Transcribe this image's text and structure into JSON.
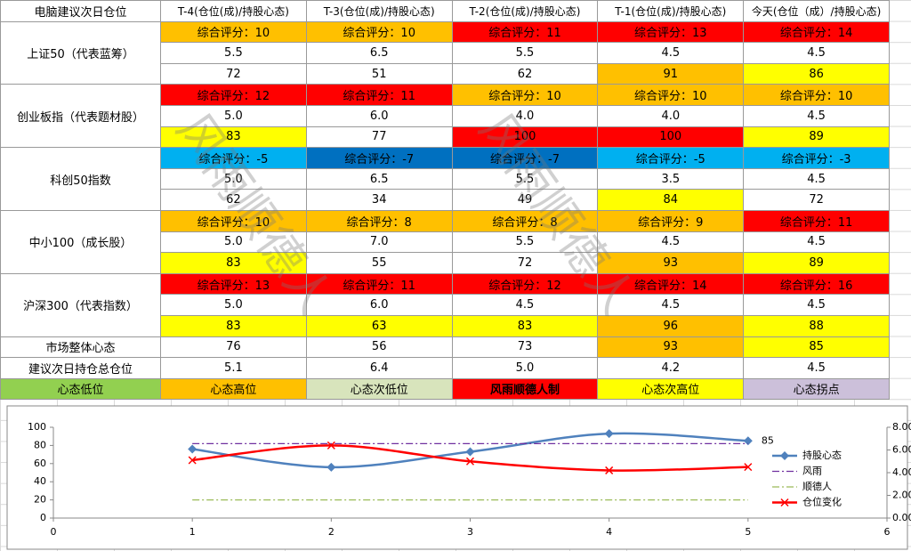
{
  "table": {
    "header": [
      "电脑建议次日仓位",
      "T-4(仓位(成)/持股心态)",
      "T-3(仓位(成)/持股心态)",
      "T-2(仓位(成)/持股心态)",
      "T-1(仓位(成)/持股心态)",
      "今天(仓位（成）/持股心态)"
    ],
    "groups": [
      {
        "name": "上证50（代表蓝筹）",
        "scores": [
          {
            "text": "综合评分：10",
            "color": "#ffc000"
          },
          {
            "text": "综合评分：10",
            "color": "#ffc000"
          },
          {
            "text": "综合评分：11",
            "color": "#ff0000"
          },
          {
            "text": "综合评分：13",
            "color": "#ff0000"
          },
          {
            "text": "综合评分：14",
            "color": "#ff0000"
          }
        ],
        "positions": [
          "5.5",
          "6.5",
          "5.5",
          "4.5",
          "4.5"
        ],
        "moods": [
          {
            "text": "72",
            "color": "#ffffff"
          },
          {
            "text": "51",
            "color": "#ffffff"
          },
          {
            "text": "62",
            "color": "#ffffff"
          },
          {
            "text": "91",
            "color": "#ffc000"
          },
          {
            "text": "86",
            "color": "#ffff00"
          }
        ]
      },
      {
        "name": "创业板指（代表题材股）",
        "scores": [
          {
            "text": "综合评分：12",
            "color": "#ff0000"
          },
          {
            "text": "综合评分：11",
            "color": "#ff0000"
          },
          {
            "text": "综合评分：10",
            "color": "#ffc000"
          },
          {
            "text": "综合评分：10",
            "color": "#ffc000"
          },
          {
            "text": "综合评分：10",
            "color": "#ffc000"
          }
        ],
        "positions": [
          "5.0",
          "6.0",
          "4.0",
          "4.0",
          "4.5"
        ],
        "moods": [
          {
            "text": "83",
            "color": "#ffff00"
          },
          {
            "text": "77",
            "color": "#ffffff"
          },
          {
            "text": "100",
            "color": "#ff0000"
          },
          {
            "text": "100",
            "color": "#ff0000"
          },
          {
            "text": "89",
            "color": "#ffff00"
          }
        ]
      },
      {
        "name": "科创50指数",
        "scores": [
          {
            "text": "综合评分：-5",
            "color": "#00b0f0"
          },
          {
            "text": "综合评分：-7",
            "color": "#0070c0"
          },
          {
            "text": "综合评分：-7",
            "color": "#0070c0"
          },
          {
            "text": "综合评分：-5",
            "color": "#00b0f0"
          },
          {
            "text": "综合评分：-3",
            "color": "#00b0f0"
          }
        ],
        "positions": [
          "5.0",
          "6.5",
          "5.5",
          "3.5",
          "4.5"
        ],
        "moods": [
          {
            "text": "62",
            "color": "#ffffff"
          },
          {
            "text": "34",
            "color": "#ffffff"
          },
          {
            "text": "49",
            "color": "#ffffff"
          },
          {
            "text": "84",
            "color": "#ffff00"
          },
          {
            "text": "72",
            "color": "#ffffff"
          }
        ]
      },
      {
        "name": "中小100（成长股）",
        "scores": [
          {
            "text": "综合评分：10",
            "color": "#ffc000"
          },
          {
            "text": "综合评分：8",
            "color": "#ffc000"
          },
          {
            "text": "综合评分：8",
            "color": "#ffc000"
          },
          {
            "text": "综合评分：9",
            "color": "#ffc000"
          },
          {
            "text": "综合评分：11",
            "color": "#ff0000"
          }
        ],
        "positions": [
          "5.0",
          "7.0",
          "5.5",
          "4.5",
          "4.5"
        ],
        "moods": [
          {
            "text": "83",
            "color": "#ffff00"
          },
          {
            "text": "55",
            "color": "#ffffff"
          },
          {
            "text": "72",
            "color": "#ffffff"
          },
          {
            "text": "93",
            "color": "#ffc000"
          },
          {
            "text": "89",
            "color": "#ffff00"
          }
        ]
      },
      {
        "name": "沪深300（代表指数）",
        "scores": [
          {
            "text": "综合评分：13",
            "color": "#ff0000"
          },
          {
            "text": "综合评分：11",
            "color": "#ff0000"
          },
          {
            "text": "综合评分：12",
            "color": "#ff0000"
          },
          {
            "text": "综合评分：14",
            "color": "#ff0000"
          },
          {
            "text": "综合评分：16",
            "color": "#ff0000"
          }
        ],
        "positions": [
          "5.0",
          "6.0",
          "4.5",
          "4.5",
          "4.5"
        ],
        "moods": [
          {
            "text": "83",
            "color": "#ffff00"
          },
          {
            "text": "63",
            "color": "#ffff00"
          },
          {
            "text": "83",
            "color": "#ffff00"
          },
          {
            "text": "96",
            "color": "#ffc000"
          },
          {
            "text": "88",
            "color": "#ffff00"
          }
        ]
      }
    ],
    "market": {
      "label": "市场整体心态",
      "cells": [
        {
          "text": "76",
          "color": "#ffffff"
        },
        {
          "text": "56",
          "color": "#ffffff"
        },
        {
          "text": "73",
          "color": "#ffffff"
        },
        {
          "text": "93",
          "color": "#ffc000"
        },
        {
          "text": "85",
          "color": "#ffff00"
        }
      ]
    },
    "total": {
      "label": "建议次日持仓总仓位",
      "values": [
        "5.1",
        "6.4",
        "5.0",
        "4.2",
        "4.5"
      ]
    },
    "legend": [
      {
        "text": "心态低位",
        "color": "#92d050"
      },
      {
        "text": "心态高位",
        "color": "#ffc000"
      },
      {
        "text": "心态次低位",
        "color": "#d8e4bc"
      },
      {
        "text": "风雨顺德人制",
        "color": "#ff0000"
      },
      {
        "text": "心态次高位",
        "color": "#ffff00"
      },
      {
        "text": "心态拐点",
        "color": "#ccc0da"
      }
    ]
  },
  "watermark": "风雨顺德人",
  "chart_data": {
    "type": "line",
    "x": [
      1,
      2,
      3,
      4,
      5
    ],
    "xlim": [
      0,
      6
    ],
    "xticks": [
      0,
      1,
      2,
      3,
      4,
      5,
      6
    ],
    "ylim": [
      0,
      100
    ],
    "yticks": [
      0,
      20,
      40,
      60,
      80,
      100
    ],
    "y2lim": [
      0,
      8
    ],
    "y2ticks": [
      {
        "value": 0,
        "label": "0.00"
      },
      {
        "value": 2,
        "label": "2.00"
      },
      {
        "value": 4,
        "label": "4.00"
      },
      {
        "value": 6,
        "label": "6.00"
      },
      {
        "value": 8,
        "label": "8.00"
      }
    ],
    "legend": "right",
    "series": [
      {
        "name": "持股心态",
        "color": "#4f81bd",
        "marker": "diamond",
        "smooth": true,
        "dash": "none",
        "values": [
          76,
          56,
          73,
          93,
          85
        ],
        "value_labels": [
          null,
          null,
          null,
          null,
          "85"
        ]
      },
      {
        "name": "风雨",
        "color": "#7030a0",
        "marker": "none",
        "smooth": false,
        "dash": "8 3 2 3",
        "values": [
          82,
          82,
          82,
          82,
          82
        ]
      },
      {
        "name": "顺德人",
        "color": "#9bbb59",
        "marker": "none",
        "smooth": false,
        "dash": "8 3 2 3",
        "values": [
          20,
          20,
          20,
          20,
          20
        ]
      },
      {
        "name": "仓位变化",
        "color": "#ff0000",
        "marker": "x",
        "smooth": true,
        "dash": "none",
        "axis": "y2",
        "values": [
          5.1,
          6.4,
          5.0,
          4.2,
          4.5
        ]
      }
    ]
  }
}
